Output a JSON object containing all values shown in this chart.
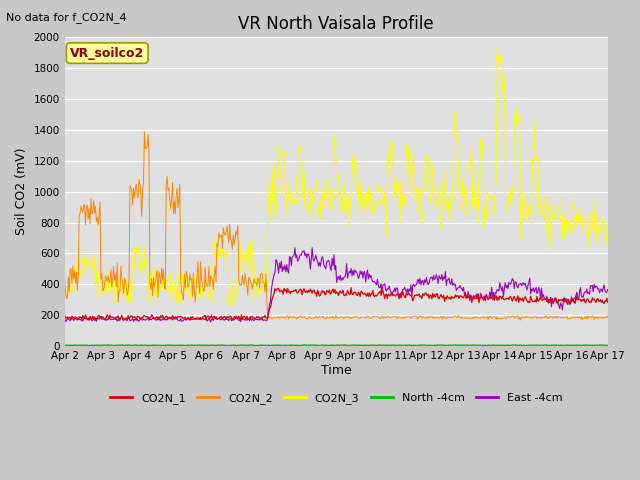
{
  "title": "VR North Vaisala Profile",
  "no_data_text": "No data for f_CO2N_4",
  "box_label": "VR_soilco2",
  "xlabel": "Time",
  "ylabel": "Soil CO2 (mV)",
  "ylim": [
    0,
    2000
  ],
  "yticks": [
    0,
    200,
    400,
    600,
    800,
    1000,
    1200,
    1400,
    1600,
    1800,
    2000
  ],
  "date_labels": [
    "Apr 2",
    "Apr 3",
    "Apr 4",
    "Apr 5",
    "Apr 6",
    "Apr 7",
    "Apr 8",
    "Apr 9",
    "Apr 10",
    "Apr 11",
    "Apr 12",
    "Apr 13",
    "Apr 14",
    "Apr 15",
    "Apr 16",
    "Apr 17"
  ],
  "colors": {
    "CO2N_1": "#dd0000",
    "CO2N_2": "#ff8800",
    "CO2N_3": "#ffff00",
    "North": "#00bb00",
    "East": "#9900bb"
  },
  "fig_bg": "#c8c8c8",
  "plot_bg": "#e0e0e0",
  "box_facecolor": "#ffff99",
  "box_edgecolor": "#999900",
  "box_textcolor": "#880000"
}
